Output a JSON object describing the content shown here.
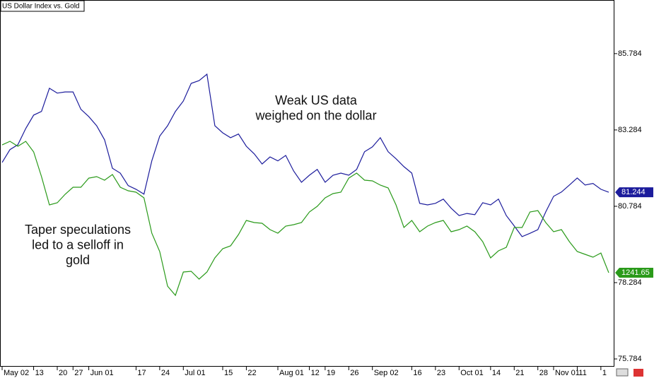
{
  "chart_data": {
    "type": "line",
    "title": "US Dollar Index vs. Gold",
    "categories": [
      "May 02",
      null,
      null,
      null,
      "13",
      null,
      null,
      "20",
      null,
      "27",
      null,
      "Jun 01",
      null,
      null,
      null,
      null,
      null,
      "17",
      null,
      null,
      "24",
      null,
      null,
      "Jul 01",
      null,
      null,
      null,
      null,
      "15",
      null,
      null,
      "22",
      null,
      null,
      null,
      "Aug 01",
      null,
      null,
      null,
      "12",
      null,
      "19",
      null,
      null,
      "26",
      null,
      null,
      "Sep 02",
      null,
      null,
      null,
      null,
      "16",
      null,
      null,
      "23",
      null,
      null,
      "Oct 01",
      null,
      null,
      null,
      "14",
      null,
      null,
      "21",
      null,
      null,
      "28",
      null,
      "Nov 01",
      null,
      null,
      "11",
      null,
      null,
      "1",
      null
    ],
    "series": [
      {
        "color": "#1c1c9c",
        "values": [
          82.22,
          82.64,
          82.8,
          83.33,
          83.77,
          83.89,
          84.65,
          84.49,
          84.53,
          84.53,
          83.96,
          83.72,
          83.42,
          82.96,
          82.03,
          81.87,
          81.46,
          81.34,
          81.18,
          82.27,
          83.08,
          83.42,
          83.89,
          84.23,
          84.81,
          84.9,
          85.11,
          83.42,
          83.19,
          83.03,
          83.15,
          82.75,
          82.5,
          82.17,
          82.4,
          82.27,
          82.45,
          81.94,
          81.57,
          81.8,
          81.99,
          81.57,
          81.8,
          81.87,
          81.8,
          81.99,
          82.57,
          82.73,
          83.03,
          82.57,
          82.34,
          82.08,
          81.87,
          80.88,
          80.83,
          80.88,
          81.02,
          80.72,
          80.48,
          80.55,
          80.51,
          80.9,
          80.83,
          81.02,
          80.48,
          80.14,
          79.79,
          79.9,
          80.02,
          80.6,
          81.11,
          81.25,
          81.48,
          81.71,
          81.48,
          81.53,
          81.34,
          81.244
        ]
      },
      {
        "color": "#2a9a1a",
        "axis": "y2",
        "values": [
          1462.7,
          1468.9,
          1460.3,
          1468.9,
          1450.5,
          1407.8,
          1358.9,
          1362.6,
          1377.3,
          1389.5,
          1389.5,
          1405.3,
          1407.8,
          1401.7,
          1411.5,
          1389.5,
          1383.4,
          1380.9,
          1371.1,
          1310.1,
          1278.3,
          1218.4,
          1202.6,
          1242.9,
          1244.1,
          1230.7,
          1242.9,
          1267.3,
          1283.2,
          1288.1,
          1307.6,
          1332.1,
          1328.4,
          1327.2,
          1316.2,
          1310.1,
          1322.3,
          1324.7,
          1328.4,
          1346.7,
          1356.5,
          1371.1,
          1378.5,
          1380.9,
          1405.3,
          1413.9,
          1401.7,
          1400.5,
          1393.1,
          1388.2,
          1358.9,
          1319.8,
          1332.1,
          1312.5,
          1322.3,
          1328.4,
          1332.1,
          1312.5,
          1316.2,
          1322.3,
          1312.5,
          1295.4,
          1267.3,
          1279.5,
          1285.6,
          1319.8,
          1319.8,
          1346.7,
          1349.2,
          1328.4,
          1312.5,
          1316.2,
          1295.4,
          1278.3,
          1273.4,
          1268.5,
          1275.8,
          1241.65
        ]
      }
    ],
    "ylim": [
      75.53,
      87.54
    ],
    "yticks": [
      75.784,
      78.284,
      80.784,
      83.284,
      85.784
    ],
    "y2lim": [
      1079.2,
      1713.2
    ],
    "annotations": [
      {
        "lines": [
          "Weak US data",
          "weighed on the dollar"
        ]
      },
      {
        "lines": [
          "Taper speculations",
          "led to a selloff in",
          "gold"
        ]
      }
    ]
  }
}
